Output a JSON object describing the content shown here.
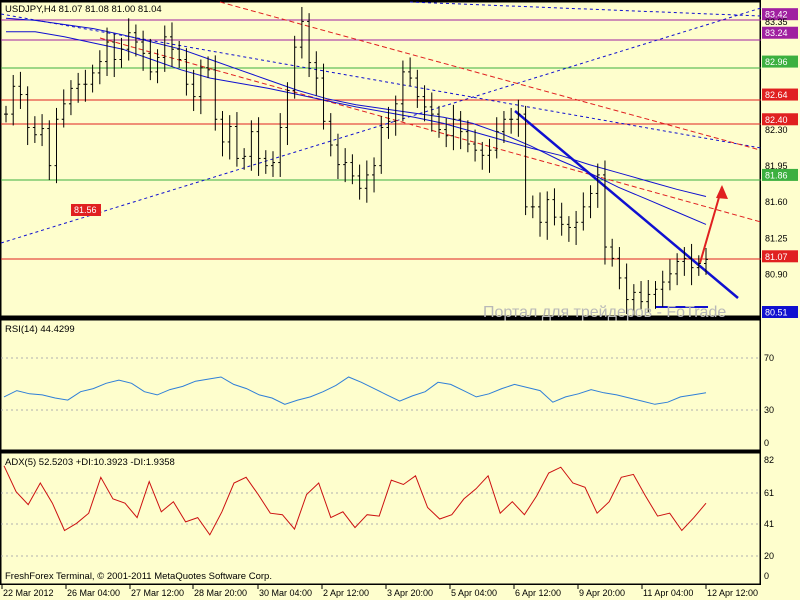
{
  "header": {
    "title": "USDJPY,H4  81.07 81.08 81.00 81.04"
  },
  "watermark": "Портал для трейдеров - FoTrade",
  "footer": "FreshForex Terminal, © 2001-2011 MetaQuotes Software Corp.",
  "price_labels": [
    "83.42",
    "83.35",
    "83.24",
    "82.96",
    "82.64",
    "82.40",
    "82.30",
    "81.95",
    "81.86",
    "81.60",
    "81.25",
    "81.07",
    "80.90",
    "80.51"
  ],
  "level_marker": "81.56",
  "time_labels": [
    "22 Mar 2012",
    "26 Mar 04:00",
    "27 Mar 12:00",
    "28 Mar 20:00",
    "30 Mar 04:00",
    "2 Apr 12:00",
    "3 Apr 20:00",
    "5 Apr 04:00",
    "6 Apr 12:00",
    "9 Apr 20:00",
    "11 Apr 04:00",
    "12 Apr 12:00"
  ],
  "rsi": {
    "title": "RSI(14) 44.4299",
    "levels": [
      "70",
      "30",
      "0"
    ]
  },
  "adx": {
    "title": "ADX(5) 52.5203 +DI:10.3923 -DI:1.9358",
    "levels": [
      "82",
      "61",
      "41",
      "20",
      "0"
    ]
  },
  "colors": {
    "background": "#fefecd",
    "line": "#1010d0",
    "adx": "#cc1111",
    "rsi": "#2f7fd8",
    "support": "#e02020",
    "green_level": "#3cb040",
    "magenta": "#a020a0",
    "frame": "#000000"
  },
  "chart_data": [
    {
      "type": "candlestick",
      "title": "USDJPY,H4  81.07 81.08 81.00 81.04",
      "y_range": [
        80.51,
        83.48
      ],
      "closes": [
        82.45,
        82.72,
        82.64,
        82.32,
        82.25,
        82.31,
        81.95,
        82.4,
        82.55,
        82.7,
        82.74,
        82.74,
        82.85,
        82.96,
        83.15,
        82.98,
        83.08,
        83.24,
        83.15,
        83.04,
        82.86,
        83.0,
        83.2,
        83.08,
        82.98,
        82.74,
        82.62,
        82.9,
        82.88,
        82.4,
        82.18,
        82.33,
        82.02,
        82.04,
        82.28,
        82.02,
        81.95,
        81.98,
        82.32,
        82.68,
        83.1,
        83.35,
        82.95,
        82.8,
        82.38,
        82.15,
        81.96,
        81.98,
        81.85,
        81.73,
        81.86,
        81.95,
        82.32,
        82.38,
        82.55,
        82.86,
        82.8,
        82.62,
        82.52,
        82.45,
        82.3,
        82.24,
        82.4,
        82.28,
        82.16,
        82.1,
        82.05,
        82.1,
        82.28,
        82.4,
        82.4,
        82.45,
        81.55,
        81.55,
        81.4,
        81.62,
        81.45,
        81.38,
        81.35,
        81.4,
        81.55,
        81.68,
        81.86,
        81.16,
        81.05,
        80.86,
        80.65,
        80.72,
        80.63,
        80.7,
        80.75,
        80.82,
        80.9,
        81.02,
        81.05,
        80.96,
        81.0,
        81.04
      ],
      "levels": {
        "horizontal": [
          83.42,
          83.24,
          82.96,
          82.64,
          82.4,
          81.86,
          81.07
        ],
        "marker": 81.56
      },
      "series": [
        {
          "name": "Moving Average 1",
          "values": [
            83.25,
            83.25,
            83.2,
            83.14,
            83.08,
            82.98,
            82.88,
            82.8,
            82.75,
            82.7,
            82.64,
            82.58,
            82.52,
            82.47,
            82.42,
            82.36,
            82.28,
            82.2,
            82.12,
            82.05,
            81.96,
            81.88,
            81.8,
            81.72,
            81.65
          ]
        },
        {
          "name": "Moving Average 2",
          "values": [
            83.38,
            83.36,
            83.32,
            83.28,
            83.22,
            83.15,
            83.08,
            82.98,
            82.88,
            82.78,
            82.68,
            82.6,
            82.54,
            82.5,
            82.46,
            82.42,
            82.36,
            82.26,
            82.14,
            82.0,
            81.88,
            81.74,
            81.62,
            81.5,
            81.38
          ]
        }
      ]
    },
    {
      "type": "line",
      "title": "RSI(14) 44.4299",
      "y_range": [
        0,
        100
      ],
      "levels": [
        70,
        30
      ],
      "series": [
        {
          "name": "RSI(14)",
          "values": [
            41,
            47,
            44,
            43,
            40,
            38,
            46,
            49,
            54,
            57,
            54,
            46,
            43,
            48,
            51,
            56,
            58,
            60,
            53,
            49,
            43,
            40,
            34,
            38,
            41,
            46,
            52,
            60,
            55,
            49,
            43,
            37,
            42,
            46,
            55,
            53,
            47,
            41,
            44,
            49,
            53,
            50,
            47,
            36,
            41,
            44,
            48,
            45,
            43,
            40,
            37,
            34,
            36,
            41,
            43,
            45
          ]
        }
      ]
    },
    {
      "type": "line",
      "title": "ADX(5) 52.5203 +DI:10.3923 -DI:1.9358",
      "y_range": [
        0,
        82
      ],
      "levels": [
        82,
        61,
        41,
        20
      ],
      "series": [
        {
          "name": "ADX(5)",
          "values": [
            78,
            60,
            51,
            66,
            52,
            33,
            38,
            45,
            70,
            55,
            52,
            42,
            67,
            46,
            53,
            39,
            42,
            30,
            46,
            66,
            70,
            58,
            45,
            44,
            34,
            58,
            66,
            42,
            46,
            35,
            44,
            43,
            68,
            65,
            71,
            49,
            41,
            44,
            55,
            62,
            71,
            45,
            53,
            44,
            57,
            73,
            77,
            66,
            63,
            45,
            53,
            70,
            72,
            57,
            43,
            45,
            33,
            42,
            52
          ]
        }
      ]
    }
  ]
}
